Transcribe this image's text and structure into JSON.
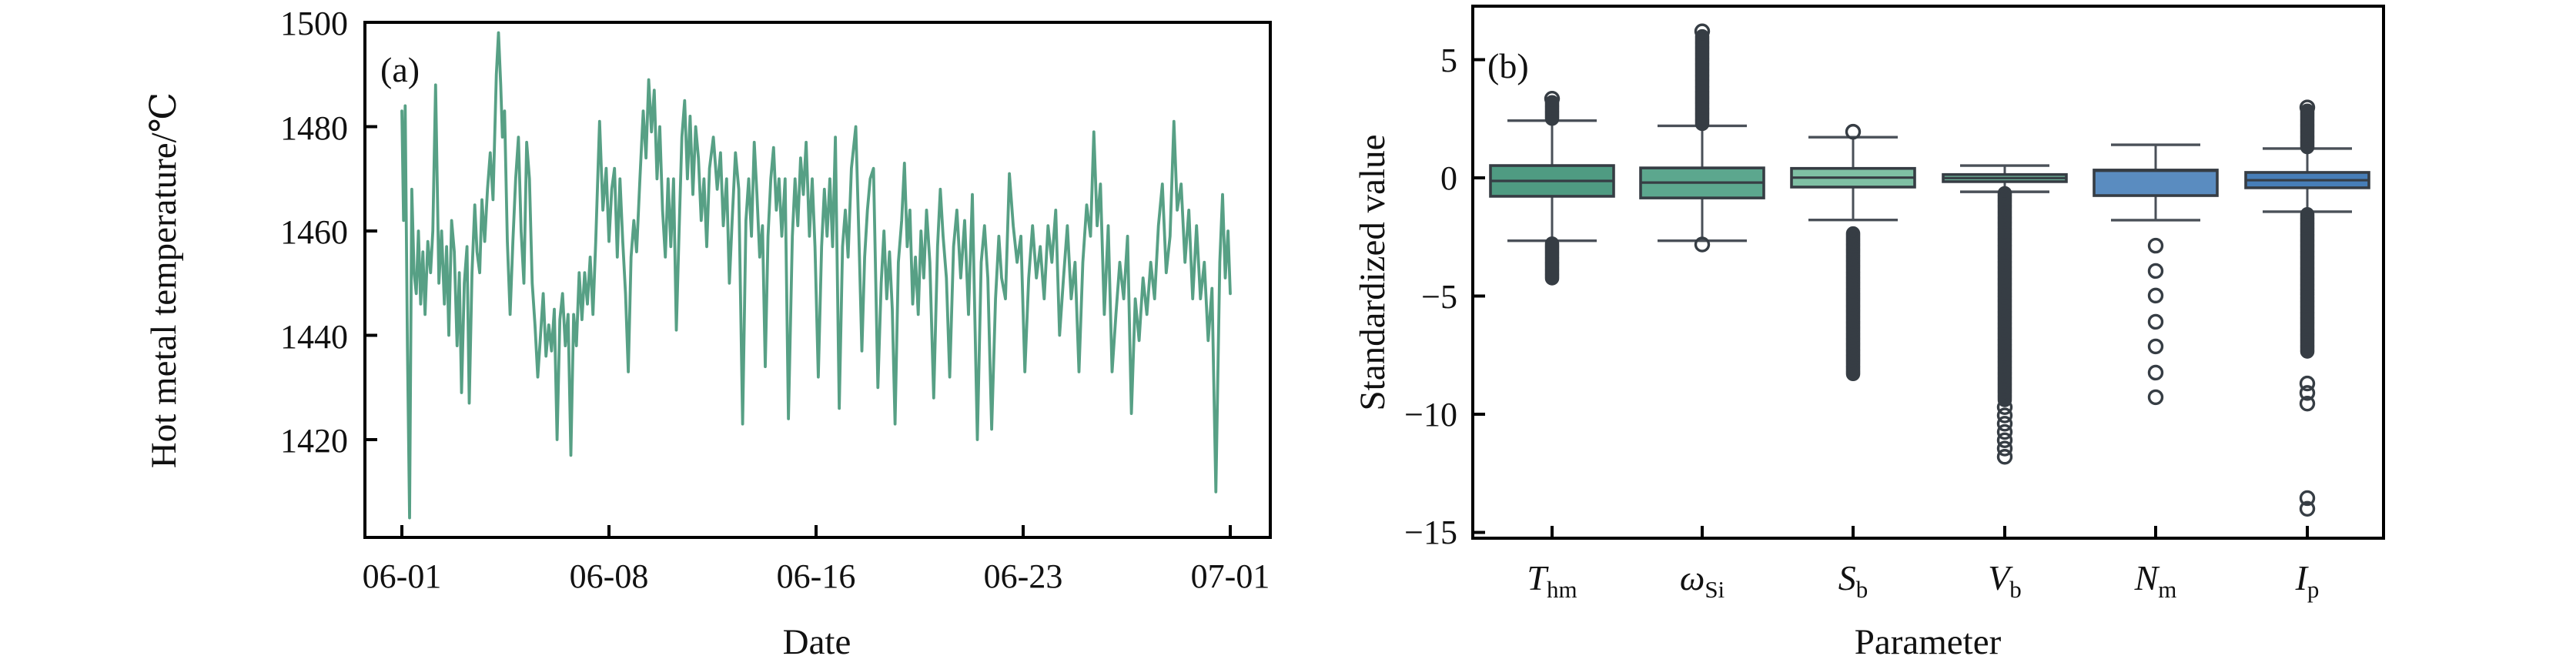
{
  "figure": {
    "background": "#ffffff",
    "text_color": "#111111"
  },
  "chart_data": [
    {
      "type": "line",
      "panel_label": "(a)",
      "xlabel": "Date",
      "ylabel": "Hot metal temperature/℃",
      "xtick_labels": [
        "06-01",
        "06-08",
        "06-16",
        "06-23",
        "07-01"
      ],
      "ytick_labels": [
        "1500",
        "1480",
        "1460",
        "1440",
        "1420"
      ],
      "ytick_values": [
        1500,
        1480,
        1460,
        1440,
        1420
      ],
      "ylim": [
        1401,
        1500.7
      ],
      "xlim_days": [
        0,
        30
      ],
      "line_color": "#57a085",
      "grid": false,
      "points": [
        [
          0,
          1483
        ],
        [
          0.06,
          1462
        ],
        [
          0.12,
          1484
        ],
        [
          0.2,
          1438
        ],
        [
          0.28,
          1405
        ],
        [
          0.36,
          1468
        ],
        [
          0.44,
          1452
        ],
        [
          0.52,
          1448
        ],
        [
          0.6,
          1460
        ],
        [
          0.68,
          1446
        ],
        [
          0.76,
          1456
        ],
        [
          0.84,
          1444
        ],
        [
          0.94,
          1458
        ],
        [
          1.04,
          1452
        ],
        [
          1.12,
          1460
        ],
        [
          1.22,
          1488
        ],
        [
          1.34,
          1450
        ],
        [
          1.44,
          1460
        ],
        [
          1.54,
          1446
        ],
        [
          1.62,
          1457
        ],
        [
          1.7,
          1440
        ],
        [
          1.8,
          1462
        ],
        [
          1.9,
          1456
        ],
        [
          2,
          1438
        ],
        [
          2.08,
          1452
        ],
        [
          2.16,
          1429
        ],
        [
          2.26,
          1450
        ],
        [
          2.36,
          1457
        ],
        [
          2.44,
          1427
        ],
        [
          2.54,
          1452
        ],
        [
          2.64,
          1465
        ],
        [
          2.72,
          1456
        ],
        [
          2.82,
          1452
        ],
        [
          2.9,
          1466
        ],
        [
          3,
          1458
        ],
        [
          3.1,
          1468
        ],
        [
          3.2,
          1475
        ],
        [
          3.3,
          1466
        ],
        [
          3.42,
          1490
        ],
        [
          3.5,
          1498
        ],
        [
          3.58,
          1488
        ],
        [
          3.64,
          1478
        ],
        [
          3.72,
          1483
        ],
        [
          3.82,
          1458
        ],
        [
          3.92,
          1444
        ],
        [
          4.02,
          1458
        ],
        [
          4.12,
          1470
        ],
        [
          4.22,
          1478
        ],
        [
          4.32,
          1460
        ],
        [
          4.42,
          1450
        ],
        [
          4.52,
          1477
        ],
        [
          4.62,
          1470
        ],
        [
          4.72,
          1450
        ],
        [
          4.82,
          1442
        ],
        [
          4.92,
          1432
        ],
        [
          5.02,
          1440
        ],
        [
          5.12,
          1448
        ],
        [
          5.22,
          1436
        ],
        [
          5.32,
          1442
        ],
        [
          5.42,
          1437
        ],
        [
          5.52,
          1445
        ],
        [
          5.62,
          1420
        ],
        [
          5.72,
          1443
        ],
        [
          5.82,
          1448
        ],
        [
          5.92,
          1438
        ],
        [
          6.02,
          1444
        ],
        [
          6.12,
          1417
        ],
        [
          6.22,
          1444
        ],
        [
          6.32,
          1438
        ],
        [
          6.42,
          1452
        ],
        [
          6.52,
          1443
        ],
        [
          6.62,
          1452
        ],
        [
          6.72,
          1446
        ],
        [
          6.82,
          1455
        ],
        [
          6.92,
          1444
        ],
        [
          7.02,
          1458
        ],
        [
          7.16,
          1481
        ],
        [
          7.28,
          1464
        ],
        [
          7.4,
          1472
        ],
        [
          7.5,
          1458
        ],
        [
          7.6,
          1468
        ],
        [
          7.7,
          1472
        ],
        [
          7.8,
          1455
        ],
        [
          7.9,
          1470
        ],
        [
          8,
          1458
        ],
        [
          8.1,
          1448
        ],
        [
          8.2,
          1433
        ],
        [
          8.3,
          1455
        ],
        [
          8.4,
          1462
        ],
        [
          8.5,
          1456
        ],
        [
          8.62,
          1470
        ],
        [
          8.74,
          1483
        ],
        [
          8.84,
          1474
        ],
        [
          8.94,
          1489
        ],
        [
          9.04,
          1479
        ],
        [
          9.14,
          1487
        ],
        [
          9.24,
          1470
        ],
        [
          9.34,
          1480
        ],
        [
          9.44,
          1464
        ],
        [
          9.54,
          1455
        ],
        [
          9.64,
          1470
        ],
        [
          9.74,
          1457
        ],
        [
          9.84,
          1470
        ],
        [
          9.94,
          1441
        ],
        [
          10.04,
          1460
        ],
        [
          10.14,
          1478
        ],
        [
          10.24,
          1485
        ],
        [
          10.34,
          1470
        ],
        [
          10.44,
          1482
        ],
        [
          10.54,
          1467
        ],
        [
          10.64,
          1480
        ],
        [
          10.74,
          1474
        ],
        [
          10.84,
          1462
        ],
        [
          10.94,
          1470
        ],
        [
          11.04,
          1457
        ],
        [
          11.14,
          1472
        ],
        [
          11.28,
          1478
        ],
        [
          11.42,
          1468
        ],
        [
          11.54,
          1475
        ],
        [
          11.64,
          1461
        ],
        [
          11.76,
          1470
        ],
        [
          11.86,
          1450
        ],
        [
          11.96,
          1462
        ],
        [
          12.08,
          1475
        ],
        [
          12.2,
          1468
        ],
        [
          12.34,
          1423
        ],
        [
          12.46,
          1462
        ],
        [
          12.56,
          1470
        ],
        [
          12.66,
          1459
        ],
        [
          12.76,
          1477
        ],
        [
          12.86,
          1467
        ],
        [
          12.96,
          1455
        ],
        [
          13.06,
          1461
        ],
        [
          13.16,
          1434
        ],
        [
          13.26,
          1459
        ],
        [
          13.36,
          1470
        ],
        [
          13.46,
          1476
        ],
        [
          13.56,
          1464
        ],
        [
          13.66,
          1470
        ],
        [
          13.76,
          1459
        ],
        [
          13.88,
          1470
        ],
        [
          14,
          1424
        ],
        [
          14.14,
          1459
        ],
        [
          14.24,
          1470
        ],
        [
          14.34,
          1461
        ],
        [
          14.44,
          1474
        ],
        [
          14.54,
          1467
        ],
        [
          14.64,
          1477
        ],
        [
          14.76,
          1459
        ],
        [
          14.86,
          1470
        ],
        [
          14.96,
          1457
        ],
        [
          15.08,
          1432
        ],
        [
          15.2,
          1457
        ],
        [
          15.3,
          1468
        ],
        [
          15.4,
          1459
        ],
        [
          15.5,
          1470
        ],
        [
          15.6,
          1457
        ],
        [
          15.7,
          1478
        ],
        [
          15.84,
          1426
        ],
        [
          15.96,
          1457
        ],
        [
          16.06,
          1464
        ],
        [
          16.16,
          1455
        ],
        [
          16.28,
          1472
        ],
        [
          16.44,
          1480
        ],
        [
          16.56,
          1457
        ],
        [
          16.66,
          1437
        ],
        [
          16.76,
          1455
        ],
        [
          16.86,
          1464
        ],
        [
          16.96,
          1470
        ],
        [
          17.08,
          1472
        ],
        [
          17.24,
          1430
        ],
        [
          17.36,
          1450
        ],
        [
          17.46,
          1460
        ],
        [
          17.56,
          1447
        ],
        [
          17.66,
          1456
        ],
        [
          17.76,
          1445
        ],
        [
          17.86,
          1423
        ],
        [
          17.98,
          1454
        ],
        [
          18.1,
          1462
        ],
        [
          18.2,
          1473
        ],
        [
          18.3,
          1457
        ],
        [
          18.4,
          1464
        ],
        [
          18.5,
          1446
        ],
        [
          18.6,
          1455
        ],
        [
          18.7,
          1444
        ],
        [
          18.8,
          1460
        ],
        [
          18.9,
          1451
        ],
        [
          19,
          1464
        ],
        [
          19.12,
          1454
        ],
        [
          19.26,
          1428
        ],
        [
          19.4,
          1457
        ],
        [
          19.5,
          1468
        ],
        [
          19.6,
          1459
        ],
        [
          19.72,
          1451
        ],
        [
          19.84,
          1432
        ],
        [
          19.98,
          1457
        ],
        [
          20.1,
          1464
        ],
        [
          20.24,
          1451
        ],
        [
          20.38,
          1462
        ],
        [
          20.52,
          1444
        ],
        [
          20.66,
          1467
        ],
        [
          20.84,
          1420
        ],
        [
          20.98,
          1454
        ],
        [
          21.1,
          1461
        ],
        [
          21.22,
          1451
        ],
        [
          21.36,
          1422
        ],
        [
          21.5,
          1447
        ],
        [
          21.62,
          1459
        ],
        [
          21.72,
          1451
        ],
        [
          21.86,
          1447
        ],
        [
          22,
          1471
        ],
        [
          22.14,
          1461
        ],
        [
          22.28,
          1454
        ],
        [
          22.42,
          1459
        ],
        [
          22.56,
          1433
        ],
        [
          22.7,
          1451
        ],
        [
          22.84,
          1461
        ],
        [
          22.98,
          1451
        ],
        [
          23.12,
          1457
        ],
        [
          23.26,
          1447
        ],
        [
          23.4,
          1461
        ],
        [
          23.54,
          1454
        ],
        [
          23.68,
          1464
        ],
        [
          23.82,
          1440
        ],
        [
          23.96,
          1451
        ],
        [
          24.1,
          1461
        ],
        [
          24.24,
          1447
        ],
        [
          24.38,
          1454
        ],
        [
          24.52,
          1433
        ],
        [
          24.66,
          1454
        ],
        [
          24.8,
          1465
        ],
        [
          24.94,
          1459
        ],
        [
          25.06,
          1479
        ],
        [
          25.18,
          1461
        ],
        [
          25.3,
          1469
        ],
        [
          25.44,
          1444
        ],
        [
          25.58,
          1461
        ],
        [
          25.72,
          1433
        ],
        [
          25.86,
          1444
        ],
        [
          26,
          1454
        ],
        [
          26.14,
          1447
        ],
        [
          26.28,
          1459
        ],
        [
          26.42,
          1425
        ],
        [
          26.56,
          1447
        ],
        [
          26.7,
          1439
        ],
        [
          26.84,
          1451
        ],
        [
          26.98,
          1444
        ],
        [
          27.12,
          1454
        ],
        [
          27.26,
          1447
        ],
        [
          27.4,
          1461
        ],
        [
          27.54,
          1469
        ],
        [
          27.68,
          1452
        ],
        [
          27.82,
          1459
        ],
        [
          27.96,
          1481
        ],
        [
          28.08,
          1464
        ],
        [
          28.22,
          1469
        ],
        [
          28.36,
          1454
        ],
        [
          28.5,
          1464
        ],
        [
          28.64,
          1447
        ],
        [
          28.78,
          1461
        ],
        [
          28.92,
          1447
        ],
        [
          29.06,
          1454
        ],
        [
          29.2,
          1439
        ],
        [
          29.34,
          1449
        ],
        [
          29.48,
          1410
        ],
        [
          29.62,
          1454
        ],
        [
          29.72,
          1467
        ],
        [
          29.82,
          1451
        ],
        [
          29.92,
          1460
        ],
        [
          30,
          1448
        ]
      ]
    },
    {
      "type": "box",
      "panel_label": "(b)",
      "xlabel": "Parameter",
      "ylabel": "Standardized value",
      "ytick_labels": [
        "5",
        "0",
        "−5",
        "−10",
        "−15"
      ],
      "ytick_values": [
        5,
        0,
        -5,
        -10,
        -15
      ],
      "ylim": [
        -15.2,
        7.3
      ],
      "edge_color": "#363d44",
      "whisker_color": "#4a5058",
      "categories": [
        {
          "sym": "T",
          "sub": "hm"
        },
        {
          "sym": "ω",
          "sub": "Si"
        },
        {
          "sym": "S",
          "sub": "b"
        },
        {
          "sym": "V",
          "sub": "b"
        },
        {
          "sym": "N",
          "sub": "m"
        },
        {
          "sym": "I",
          "sub": "p"
        }
      ],
      "boxes": [
        {
          "name": "T_hm",
          "color": "#4f9b82",
          "whislo": -2.66,
          "q1": -0.78,
          "med": -0.13,
          "q3": 0.52,
          "whishi": 2.42,
          "outlier_runs": [
            [
              2.5,
              3.25
            ],
            [
              -4.25,
              -2.72
            ]
          ],
          "outliers": [
            3.35
          ]
        },
        {
          "name": "omega_Si",
          "color": "#5ca78e",
          "whislo": -2.66,
          "q1": -0.85,
          "med": -0.2,
          "q3": 0.42,
          "whishi": 2.2,
          "outlier_runs": [
            [
              2.28,
              6.05
            ]
          ],
          "outliers": [
            6.2,
            -2.82
          ]
        },
        {
          "name": "S_b",
          "color": "#7fc0a4",
          "whislo": -1.78,
          "q1": -0.39,
          "med": 0.01,
          "q3": 0.4,
          "whishi": 1.72,
          "outlier_runs": [
            [
              -8.3,
              -2.3
            ]
          ],
          "outliers": [
            1.95
          ]
        },
        {
          "name": "V_b",
          "color": "#72b89c",
          "whislo": -0.59,
          "q1": -0.16,
          "med": -0.01,
          "q3": 0.14,
          "whishi": 0.52,
          "outlier_runs": [
            [
              -9.4,
              -0.62
            ]
          ],
          "outliers": [
            -9.7,
            -10.05,
            -10.4,
            -10.75,
            -11.1,
            -11.45,
            -11.8
          ]
        },
        {
          "name": "N_m",
          "color": "#5a8cc0",
          "whislo": -1.79,
          "q1": -0.75,
          "med": 0.3,
          "q3": 0.33,
          "whishi": 1.4,
          "outlier_runs": [],
          "outliers": [
            -2.87,
            -3.94,
            -4.98,
            -6.09,
            -7.13,
            -8.24,
            -9.28
          ]
        },
        {
          "name": "I_p",
          "color": "#477eb8",
          "whislo": -1.43,
          "q1": -0.42,
          "med": -0.1,
          "q3": 0.23,
          "whishi": 1.24,
          "outlier_runs": [
            [
              1.3,
              2.9
            ],
            [
              -7.35,
              -1.5
            ]
          ],
          "outliers": [
            2.98,
            -8.7,
            -9.1,
            -9.55,
            -13.55,
            -14.0
          ]
        }
      ]
    }
  ]
}
